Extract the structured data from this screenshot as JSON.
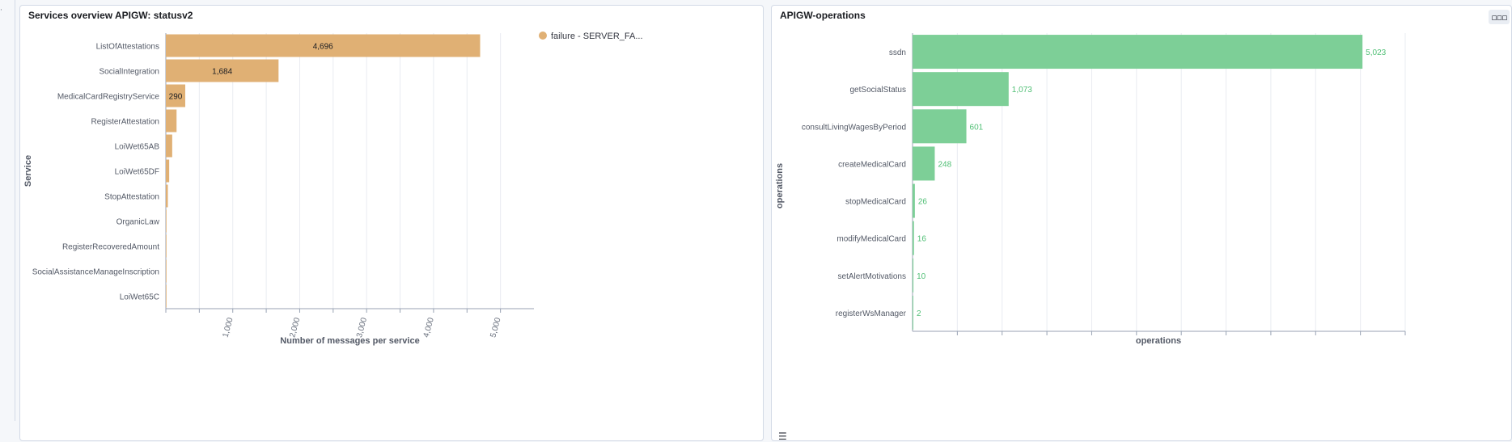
{
  "chart_data": [
    {
      "type": "bar",
      "orientation": "horizontal",
      "title": "Services overview APIGW: statusv2",
      "ylabel": "Service",
      "xlabel": "Number of messages per service",
      "categories": [
        "ListOfAttestations",
        "SocialIntegration",
        "MedicalCardRegistryService",
        "RegisterAttestation",
        "LoiWet65AB",
        "LoiWet65DF",
        "StopAttestation",
        "OrganicLaw",
        "RegisterRecoveredAmount",
        "SocialAssistanceManageInscription",
        "LoiWet65C"
      ],
      "series": [
        {
          "name": "failure - SERVER_FA...",
          "color": "#e0b074",
          "values": [
            4696,
            1684,
            290,
            160,
            95,
            50,
            30,
            8,
            4,
            2,
            1
          ],
          "data_labels": [
            "4,696",
            "1,684",
            "290",
            "",
            "",
            "",
            "",
            "",
            "",
            "",
            ""
          ]
        }
      ],
      "xlim": [
        0,
        5500
      ],
      "ticks": [
        1000,
        2000,
        3000,
        4000,
        5000
      ],
      "tick_labels": [
        "1,000",
        "2,000",
        "3,000",
        "4,000",
        "5,000"
      ],
      "grid": true,
      "legend": "top-right"
    },
    {
      "type": "bar",
      "orientation": "horizontal",
      "title": "APIGW-operations",
      "ylabel": "operations",
      "xlabel": "operations",
      "categories": [
        "ssdn",
        "getSocialStatus",
        "consultLivingWagesByPeriod",
        "createMedicalCard",
        "stopMedicalCard",
        "modifyMedicalCard",
        "setAlertMotivations",
        "registerWsManager"
      ],
      "series": [
        {
          "color": "#7dcf97",
          "label_color": "#4fbf74",
          "values": [
            5023,
            1073,
            601,
            248,
            26,
            16,
            10,
            2
          ],
          "data_labels": [
            "5,023",
            "1,073",
            "601",
            "248",
            "26",
            "16",
            "10",
            "2"
          ]
        }
      ],
      "xlim": [
        0,
        5500
      ],
      "grid": true,
      "legend": "none"
    }
  ],
  "ui": {
    "edge_glyph": "·",
    "options_icon": "▫▫▫",
    "legend_toggle_icon": "☰"
  }
}
